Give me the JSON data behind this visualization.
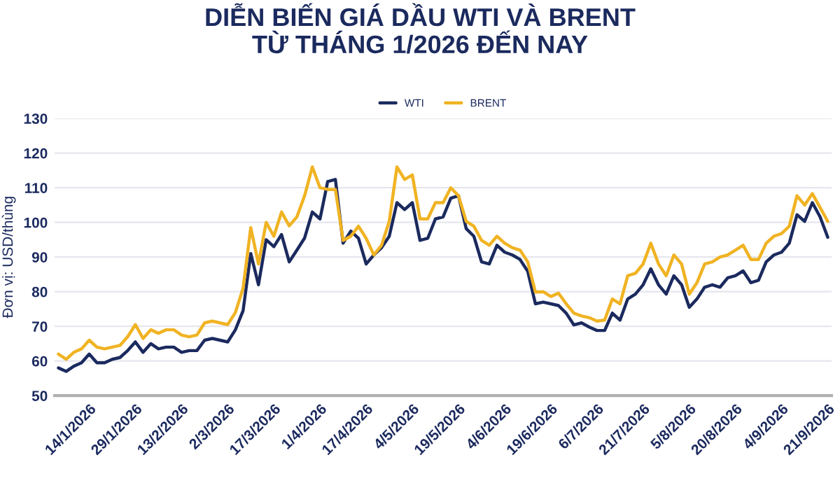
{
  "chart_data": {
    "type": "line",
    "title": "DIỄN BIẾN GIÁ DẦU WTI VÀ BRENT\nTỪ THÁNG 1/2026 ĐẾN NAY",
    "ylabel": "Đơn vị: USD/thùng",
    "categories": [
      null,
      null,
      null,
      null,
      "14/1/2026",
      null,
      null,
      null,
      null,
      null,
      "29/1/2026",
      null,
      null,
      null,
      null,
      null,
      "13/2/2026",
      null,
      null,
      null,
      null,
      null,
      "2/3/2026",
      null,
      null,
      null,
      null,
      null,
      "17/3/2026",
      null,
      null,
      null,
      null,
      null,
      "1/4/2026",
      null,
      null,
      null,
      null,
      null,
      "17/4/2026",
      null,
      null,
      null,
      null,
      null,
      "4/5/2026",
      null,
      null,
      null,
      null,
      null,
      "19/5/2026",
      null,
      null,
      null,
      null,
      null,
      "4/6/2026",
      null,
      null,
      null,
      null,
      null,
      "19/6/2026",
      null,
      null,
      null,
      null,
      null,
      "6/7/2026",
      null,
      null,
      null,
      null,
      null,
      "21/7/2026",
      null,
      null,
      null,
      null,
      null,
      "5/8/2026",
      null,
      null,
      null,
      null,
      null,
      "20/8/2026",
      null,
      null,
      null,
      null,
      null,
      "4/9/2026",
      null,
      null,
      null,
      null,
      null,
      "21/9/2026"
    ],
    "series": [
      {
        "name": "WTI",
        "color": "#1b2a5e",
        "values": [
          58,
          57,
          58.5,
          59.5,
          62,
          59.5,
          59.5,
          60.5,
          61,
          63,
          65.5,
          62.5,
          65,
          63.5,
          64,
          64,
          62.5,
          63,
          63,
          66,
          66.5,
          66,
          65.5,
          69,
          74.5,
          91,
          82,
          95,
          93,
          96.5,
          88.6,
          92,
          95.5,
          103,
          101,
          111.8,
          112.4,
          94,
          97.5,
          95.4,
          88,
          90.6,
          92.7,
          96,
          105.7,
          103.7,
          105.7,
          94.8,
          95.4,
          101,
          101.6,
          107,
          107.7,
          98.2,
          96,
          88.6,
          88,
          93.4,
          91.4,
          90.6,
          89.3,
          85.9,
          76.5,
          77,
          76.5,
          76,
          73.8,
          70.4,
          71,
          69.8,
          68.8,
          68.8,
          73.8,
          71.8,
          77.9,
          79.3,
          82,
          86.6,
          82,
          79.3,
          84.6,
          82,
          75.5,
          77.9,
          81.3,
          82,
          81.3,
          84,
          84.6,
          86,
          82.6,
          83.3,
          88.6,
          90.6,
          91.4,
          94,
          102.2,
          100.3,
          105.7,
          101.6,
          95.7
        ]
      },
      {
        "name": "BRENT",
        "color": "#f0b323",
        "values": [
          62,
          60.5,
          62.5,
          63.5,
          66,
          64,
          63.5,
          64,
          64.5,
          67,
          70.5,
          66.5,
          69,
          68,
          69,
          69,
          67.5,
          67,
          67.5,
          71,
          71.5,
          71,
          70.5,
          74,
          81,
          98.5,
          88,
          100,
          96,
          103,
          99,
          101.6,
          107.7,
          116,
          110,
          109.5,
          109.5,
          94.8,
          96,
          98.9,
          95.4,
          90.6,
          93.4,
          100.3,
          116,
          112.4,
          113.7,
          101,
          101,
          105.7,
          105.7,
          110,
          107.7,
          100.3,
          98.9,
          94.8,
          93.4,
          96,
          94,
          92.7,
          92,
          88.6,
          79.9,
          80,
          78.6,
          79.6,
          76.5,
          73.8,
          73,
          72.5,
          71.5,
          71.8,
          77.9,
          76.5,
          84.6,
          85.3,
          88,
          94,
          88,
          84.6,
          90.6,
          88,
          79.3,
          82.6,
          88,
          88.6,
          90,
          90.6,
          92,
          93.4,
          89.3,
          89.3,
          94,
          96,
          96.8,
          98.9,
          107.7,
          105,
          108.3,
          104.3,
          100.3
        ]
      }
    ],
    "ylim": [
      50,
      130
    ],
    "yticks": [
      50,
      60,
      70,
      80,
      90,
      100,
      110,
      120,
      130
    ],
    "grid": "y",
    "legend": "top",
    "line_style": "solid",
    "marker": "none"
  }
}
